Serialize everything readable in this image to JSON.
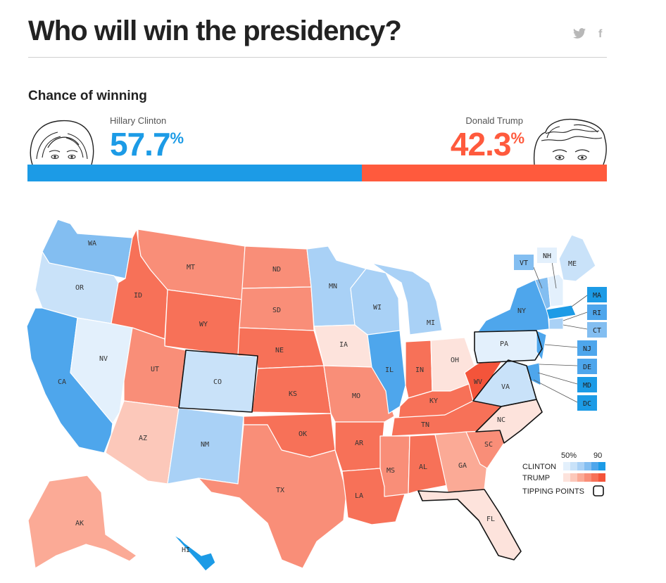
{
  "header": {
    "title": "Who will win the presidency?",
    "share_twitter_icon": "twitter-icon",
    "share_facebook": "f"
  },
  "section": {
    "title": "Chance of winning"
  },
  "candidates": [
    {
      "name": "Hillary Clinton",
      "percent": "57.7",
      "suffix": "%",
      "color": "#1c9be6",
      "probability": 0.577
    },
    {
      "name": "Donald Trump",
      "percent": "42.3",
      "suffix": "%",
      "color": "#ff5a3d",
      "probability": 0.423
    }
  ],
  "legend": {
    "scale_low": "50%",
    "scale_high": "90",
    "clinton": "CLINTON",
    "trump": "TRUMP",
    "tipping": "TIPPING POINTS",
    "clinton_colors": [
      "#e3f0fc",
      "#c9e2f9",
      "#a9d1f6",
      "#83bef1",
      "#4ea6ec",
      "#1c9be6"
    ],
    "trump_colors": [
      "#fde3dc",
      "#fcc8ba",
      "#fbaa96",
      "#f98e78",
      "#f77158",
      "#f4543a"
    ]
  },
  "states": [
    {
      "abbr": "WA",
      "lean": "clinton",
      "level": 4
    },
    {
      "abbr": "OR",
      "lean": "clinton",
      "level": 2
    },
    {
      "abbr": "CA",
      "lean": "clinton",
      "level": 5
    },
    {
      "abbr": "NV",
      "lean": "clinton",
      "level": 1
    },
    {
      "abbr": "ID",
      "lean": "trump",
      "level": 5
    },
    {
      "abbr": "MT",
      "lean": "trump",
      "level": 4
    },
    {
      "abbr": "WY",
      "lean": "trump",
      "level": 5
    },
    {
      "abbr": "UT",
      "lean": "trump",
      "level": 4
    },
    {
      "abbr": "AZ",
      "lean": "trump",
      "level": 2
    },
    {
      "abbr": "CO",
      "lean": "clinton",
      "level": 2
    },
    {
      "abbr": "NM",
      "lean": "clinton",
      "level": 3
    },
    {
      "abbr": "ND",
      "lean": "trump",
      "level": 4
    },
    {
      "abbr": "SD",
      "lean": "trump",
      "level": 4
    },
    {
      "abbr": "NE",
      "lean": "trump",
      "level": 5
    },
    {
      "abbr": "KS",
      "lean": "trump",
      "level": 5
    },
    {
      "abbr": "OK",
      "lean": "trump",
      "level": 5
    },
    {
      "abbr": "TX",
      "lean": "trump",
      "level": 4
    },
    {
      "abbr": "MN",
      "lean": "clinton",
      "level": 3
    },
    {
      "abbr": "IA",
      "lean": "trump",
      "level": 1
    },
    {
      "abbr": "MO",
      "lean": "trump",
      "level": 4
    },
    {
      "abbr": "AR",
      "lean": "trump",
      "level": 5
    },
    {
      "abbr": "LA",
      "lean": "trump",
      "level": 5
    },
    {
      "abbr": "WI",
      "lean": "clinton",
      "level": 3
    },
    {
      "abbr": "IL",
      "lean": "clinton",
      "level": 5
    },
    {
      "abbr": "MI",
      "lean": "clinton",
      "level": 3
    },
    {
      "abbr": "IN",
      "lean": "trump",
      "level": 5
    },
    {
      "abbr": "OH",
      "lean": "trump",
      "level": 1
    },
    {
      "abbr": "KY",
      "lean": "trump",
      "level": 5
    },
    {
      "abbr": "TN",
      "lean": "trump",
      "level": 5
    },
    {
      "abbr": "MS",
      "lean": "trump",
      "level": 4
    },
    {
      "abbr": "AL",
      "lean": "trump",
      "level": 5
    },
    {
      "abbr": "GA",
      "lean": "trump",
      "level": 3
    },
    {
      "abbr": "FL",
      "lean": "trump",
      "level": 1
    },
    {
      "abbr": "SC",
      "lean": "trump",
      "level": 4
    },
    {
      "abbr": "NC",
      "lean": "trump",
      "level": 1
    },
    {
      "abbr": "VA",
      "lean": "clinton",
      "level": 2
    },
    {
      "abbr": "WV",
      "lean": "trump",
      "level": 6
    },
    {
      "abbr": "PA",
      "lean": "clinton",
      "level": 1
    },
    {
      "abbr": "NY",
      "lean": "clinton",
      "level": 5
    },
    {
      "abbr": "ME",
      "lean": "clinton",
      "level": 2
    },
    {
      "abbr": "AK",
      "lean": "trump",
      "level": 3
    },
    {
      "abbr": "HI",
      "lean": "clinton",
      "level": 6
    }
  ],
  "side_boxes": [
    {
      "abbr": "VT",
      "lean": "clinton",
      "level": 4
    },
    {
      "abbr": "NH",
      "lean": "clinton",
      "level": 1
    },
    {
      "abbr": "MA",
      "lean": "clinton",
      "level": 6
    },
    {
      "abbr": "RI",
      "lean": "clinton",
      "level": 5
    },
    {
      "abbr": "CT",
      "lean": "clinton",
      "level": 4
    },
    {
      "abbr": "NJ",
      "lean": "clinton",
      "level": 5
    },
    {
      "abbr": "DE",
      "lean": "clinton",
      "level": 5
    },
    {
      "abbr": "MD",
      "lean": "clinton",
      "level": 6
    },
    {
      "abbr": "DC",
      "lean": "clinton",
      "level": 6
    }
  ]
}
